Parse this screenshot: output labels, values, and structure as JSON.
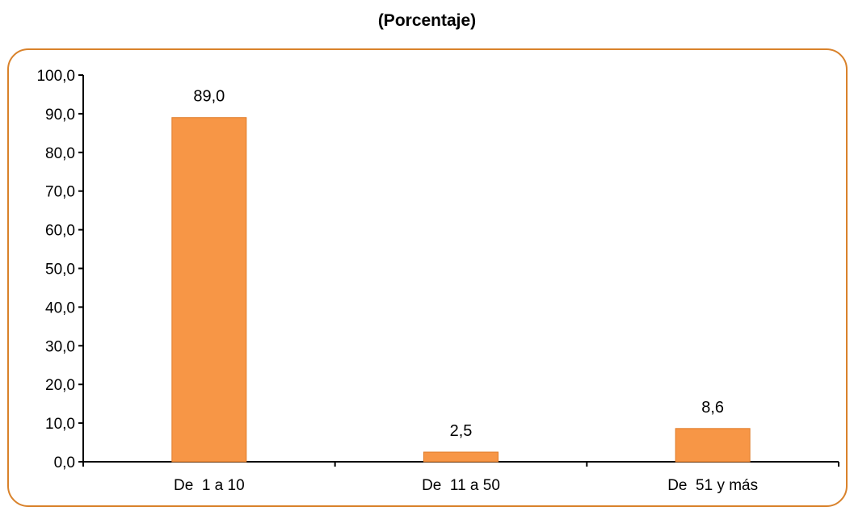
{
  "chart_data": {
    "type": "bar",
    "title": "(Porcentaje)",
    "categories": [
      "De  1 a 10",
      "De  11 a 50",
      "De  51 y más"
    ],
    "values": [
      89.0,
      2.5,
      8.6
    ],
    "data_labels": [
      "89,0",
      "2,5",
      "8,6"
    ],
    "ylim": [
      0,
      100
    ],
    "yticks": [
      0,
      10,
      20,
      30,
      40,
      50,
      60,
      70,
      80,
      90,
      100
    ],
    "ytick_labels": [
      "0,0",
      "10,0",
      "20,0",
      "30,0",
      "40,0",
      "50,0",
      "60,0",
      "70,0",
      "80,0",
      "90,0",
      "100,0"
    ],
    "xlabel": "",
    "ylabel": "",
    "grid": false,
    "bar_color": "#f79646",
    "bar_edge_color": "#e07b28",
    "frame_color": "#d9822b"
  }
}
